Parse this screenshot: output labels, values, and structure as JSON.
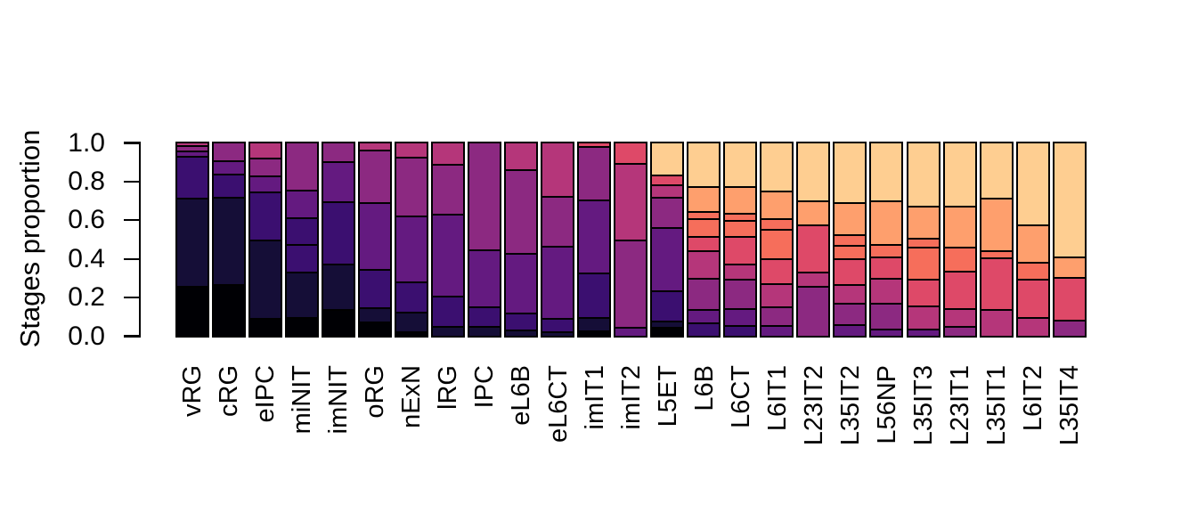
{
  "chart_data": {
    "type": "bar",
    "stacked": true,
    "orientation": "vertical",
    "title": "",
    "xlabel": "",
    "ylabel": "Stages proportion",
    "ylim": [
      0,
      1
    ],
    "yticks": [
      0.0,
      0.2,
      0.4,
      0.6,
      0.8,
      1.0
    ],
    "ytick_labels": [
      "0.0",
      "0.2",
      "0.4",
      "0.6",
      "0.8",
      "1.0"
    ],
    "grid": false,
    "legend": "none",
    "bar_border_color": "#000000",
    "stage_colors": [
      "#000004",
      "#150e37",
      "#3b0f70",
      "#641a80",
      "#8c2981",
      "#b5367a",
      "#de4968",
      "#f66e5b",
      "#fe9f6d",
      "#fece91"
    ],
    "categories": [
      "vRG",
      "cRG",
      "eIPC",
      "miNIT",
      "imNIT",
      "oRG",
      "nExN",
      "lRG",
      "IPC",
      "eL6B",
      "eL6CT",
      "imIT1",
      "imIT2",
      "L5ET",
      "L6B",
      "L6CT",
      "L6IT1",
      "L23IT2",
      "L35IT2",
      "L56NP",
      "L35IT3",
      "L23IT1",
      "L35IT1",
      "L6IT2",
      "L35IT4"
    ],
    "bars": [
      {
        "label": "vRG",
        "segments": [
          {
            "stage": 1,
            "value": 0.25
          },
          {
            "stage": 2,
            "value": 0.46
          },
          {
            "stage": 3,
            "value": 0.215
          },
          {
            "stage": 4,
            "value": 0.03
          },
          {
            "stage": 5,
            "value": 0.025
          },
          {
            "stage": 6,
            "value": 0.02
          }
        ]
      },
      {
        "label": "cRG",
        "segments": [
          {
            "stage": 1,
            "value": 0.26
          },
          {
            "stage": 2,
            "value": 0.455
          },
          {
            "stage": 3,
            "value": 0.12
          },
          {
            "stage": 4,
            "value": 0.07
          },
          {
            "stage": 5,
            "value": 0.095
          }
        ]
      },
      {
        "label": "eIPC",
        "segments": [
          {
            "stage": 1,
            "value": 0.085
          },
          {
            "stage": 2,
            "value": 0.405
          },
          {
            "stage": 3,
            "value": 0.25
          },
          {
            "stage": 4,
            "value": 0.085
          },
          {
            "stage": 5,
            "value": 0.09
          },
          {
            "stage": 6,
            "value": 0.085
          }
        ]
      },
      {
        "label": "miNIT",
        "segments": [
          {
            "stage": 1,
            "value": 0.09
          },
          {
            "stage": 2,
            "value": 0.235
          },
          {
            "stage": 3,
            "value": 0.145
          },
          {
            "stage": 3,
            "value": 0.135
          },
          {
            "stage": 4,
            "value": 0.145
          },
          {
            "stage": 5,
            "value": 0.25
          }
        ]
      },
      {
        "label": "imNIT",
        "segments": [
          {
            "stage": 1,
            "value": 0.13
          },
          {
            "stage": 2,
            "value": 0.235
          },
          {
            "stage": 3,
            "value": 0.325
          },
          {
            "stage": 4,
            "value": 0.21
          },
          {
            "stage": 5,
            "value": 0.1
          }
        ]
      },
      {
        "label": "oRG",
        "segments": [
          {
            "stage": 1,
            "value": 0.065
          },
          {
            "stage": 2,
            "value": 0.075
          },
          {
            "stage": 3,
            "value": 0.2
          },
          {
            "stage": 4,
            "value": 0.345
          },
          {
            "stage": 5,
            "value": 0.275
          },
          {
            "stage": 6,
            "value": 0.04
          }
        ]
      },
      {
        "label": "nExN",
        "segments": [
          {
            "stage": 1,
            "value": 0.015
          },
          {
            "stage": 2,
            "value": 0.1
          },
          {
            "stage": 3,
            "value": 0.16
          },
          {
            "stage": 4,
            "value": 0.34
          },
          {
            "stage": 5,
            "value": 0.305
          },
          {
            "stage": 6,
            "value": 0.08
          }
        ]
      },
      {
        "label": "lRG",
        "segments": [
          {
            "stage": 2,
            "value": 0.04
          },
          {
            "stage": 3,
            "value": 0.16
          },
          {
            "stage": 4,
            "value": 0.425
          },
          {
            "stage": 5,
            "value": 0.26
          },
          {
            "stage": 6,
            "value": 0.115
          }
        ]
      },
      {
        "label": "IPC",
        "segments": [
          {
            "stage": 2,
            "value": 0.04
          },
          {
            "stage": 3,
            "value": 0.105
          },
          {
            "stage": 4,
            "value": 0.295
          },
          {
            "stage": 5,
            "value": 0.56
          }
        ]
      },
      {
        "label": "eL6B",
        "segments": [
          {
            "stage": 2,
            "value": 0.025
          },
          {
            "stage": 3,
            "value": 0.085
          },
          {
            "stage": 4,
            "value": 0.31
          },
          {
            "stage": 5,
            "value": 0.435
          },
          {
            "stage": 6,
            "value": 0.145
          }
        ]
      },
      {
        "label": "eL6CT",
        "segments": [
          {
            "stage": 2,
            "value": 0.015
          },
          {
            "stage": 3,
            "value": 0.07
          },
          {
            "stage": 4,
            "value": 0.375
          },
          {
            "stage": 5,
            "value": 0.26
          },
          {
            "stage": 6,
            "value": 0.28
          }
        ]
      },
      {
        "label": "imIT1",
        "segments": [
          {
            "stage": 1,
            "value": 0.02
          },
          {
            "stage": 2,
            "value": 0.07
          },
          {
            "stage": 3,
            "value": 0.23
          },
          {
            "stage": 4,
            "value": 0.38
          },
          {
            "stage": 5,
            "value": 0.275
          },
          {
            "stage": 7,
            "value": 0.025
          }
        ]
      },
      {
        "label": "imIT2",
        "segments": [
          {
            "stage": 4,
            "value": 0.035
          },
          {
            "stage": 5,
            "value": 0.455
          },
          {
            "stage": 6,
            "value": 0.4
          },
          {
            "stage": 7,
            "value": 0.11
          }
        ]
      },
      {
        "label": "L5ET",
        "segments": [
          {
            "stage": 1,
            "value": 0.035
          },
          {
            "stage": 2,
            "value": 0.035
          },
          {
            "stage": 3,
            "value": 0.155
          },
          {
            "stage": 4,
            "value": 0.33
          },
          {
            "stage": 5,
            "value": 0.16
          },
          {
            "stage": 6,
            "value": 0.065
          },
          {
            "stage": 7,
            "value": 0.05
          },
          {
            "stage": 10,
            "value": 0.17
          }
        ]
      },
      {
        "label": "L6B",
        "segments": [
          {
            "stage": 3,
            "value": 0.06
          },
          {
            "stage": 4,
            "value": 0.07
          },
          {
            "stage": 5,
            "value": 0.16
          },
          {
            "stage": 6,
            "value": 0.145
          },
          {
            "stage": 7,
            "value": 0.075
          },
          {
            "stage": 8,
            "value": 0.09
          },
          {
            "stage": 8,
            "value": 0.04
          },
          {
            "stage": 9,
            "value": 0.13
          },
          {
            "stage": 10,
            "value": 0.23
          }
        ]
      },
      {
        "label": "L6CT",
        "segments": [
          {
            "stage": 3,
            "value": 0.045
          },
          {
            "stage": 4,
            "value": 0.09
          },
          {
            "stage": 5,
            "value": 0.15
          },
          {
            "stage": 6,
            "value": 0.08
          },
          {
            "stage": 7,
            "value": 0.145
          },
          {
            "stage": 8,
            "value": 0.085
          },
          {
            "stage": 8,
            "value": 0.035
          },
          {
            "stage": 9,
            "value": 0.14
          },
          {
            "stage": 10,
            "value": 0.23
          }
        ]
      },
      {
        "label": "L6IT1",
        "segments": [
          {
            "stage": 4,
            "value": 0.045
          },
          {
            "stage": 5,
            "value": 0.1
          },
          {
            "stage": 6,
            "value": 0.12
          },
          {
            "stage": 7,
            "value": 0.13
          },
          {
            "stage": 8,
            "value": 0.15
          },
          {
            "stage": 8,
            "value": 0.055
          },
          {
            "stage": 9,
            "value": 0.145
          },
          {
            "stage": 10,
            "value": 0.255
          }
        ]
      },
      {
        "label": "L23IT2",
        "segments": [
          {
            "stage": 5,
            "value": 0.25
          },
          {
            "stage": 6,
            "value": 0.075
          },
          {
            "stage": 7,
            "value": 0.245
          },
          {
            "stage": 9,
            "value": 0.125
          },
          {
            "stage": 10,
            "value": 0.305
          }
        ]
      },
      {
        "label": "L35IT2",
        "segments": [
          {
            "stage": 4,
            "value": 0.05
          },
          {
            "stage": 5,
            "value": 0.11
          },
          {
            "stage": 6,
            "value": 0.1
          },
          {
            "stage": 7,
            "value": 0.135
          },
          {
            "stage": 8,
            "value": 0.07
          },
          {
            "stage": 8,
            "value": 0.055
          },
          {
            "stage": 9,
            "value": 0.165
          },
          {
            "stage": 10,
            "value": 0.315
          }
        ]
      },
      {
        "label": "L56NP",
        "segments": [
          {
            "stage": 4,
            "value": 0.03
          },
          {
            "stage": 5,
            "value": 0.13
          },
          {
            "stage": 6,
            "value": 0.13
          },
          {
            "stage": 7,
            "value": 0.115
          },
          {
            "stage": 8,
            "value": 0.065
          },
          {
            "stage": 9,
            "value": 0.225
          },
          {
            "stage": 10,
            "value": 0.305
          }
        ]
      },
      {
        "label": "L35IT3",
        "segments": [
          {
            "stage": 4,
            "value": 0.03
          },
          {
            "stage": 6,
            "value": 0.12
          },
          {
            "stage": 7,
            "value": 0.135
          },
          {
            "stage": 8,
            "value": 0.17
          },
          {
            "stage": 8,
            "value": 0.045
          },
          {
            "stage": 9,
            "value": 0.165
          },
          {
            "stage": 10,
            "value": 0.335
          }
        ]
      },
      {
        "label": "L23IT1",
        "segments": [
          {
            "stage": 5,
            "value": 0.04
          },
          {
            "stage": 6,
            "value": 0.095
          },
          {
            "stage": 7,
            "value": 0.195
          },
          {
            "stage": 8,
            "value": 0.125
          },
          {
            "stage": 9,
            "value": 0.21
          },
          {
            "stage": 10,
            "value": 0.335
          }
        ]
      },
      {
        "label": "L35IT1",
        "segments": [
          {
            "stage": 6,
            "value": 0.13
          },
          {
            "stage": 7,
            "value": 0.27
          },
          {
            "stage": 8,
            "value": 0.035
          },
          {
            "stage": 9,
            "value": 0.275
          },
          {
            "stage": 10,
            "value": 0.29
          }
        ]
      },
      {
        "label": "L6IT2",
        "segments": [
          {
            "stage": 6,
            "value": 0.09
          },
          {
            "stage": 7,
            "value": 0.195
          },
          {
            "stage": 8,
            "value": 0.09
          },
          {
            "stage": 9,
            "value": 0.195
          },
          {
            "stage": 10,
            "value": 0.43
          }
        ]
      },
      {
        "label": "L35IT4",
        "segments": [
          {
            "stage": 5,
            "value": 0.075
          },
          {
            "stage": 7,
            "value": 0.22
          },
          {
            "stage": 9,
            "value": 0.11
          },
          {
            "stage": 10,
            "value": 0.595
          }
        ]
      }
    ]
  }
}
